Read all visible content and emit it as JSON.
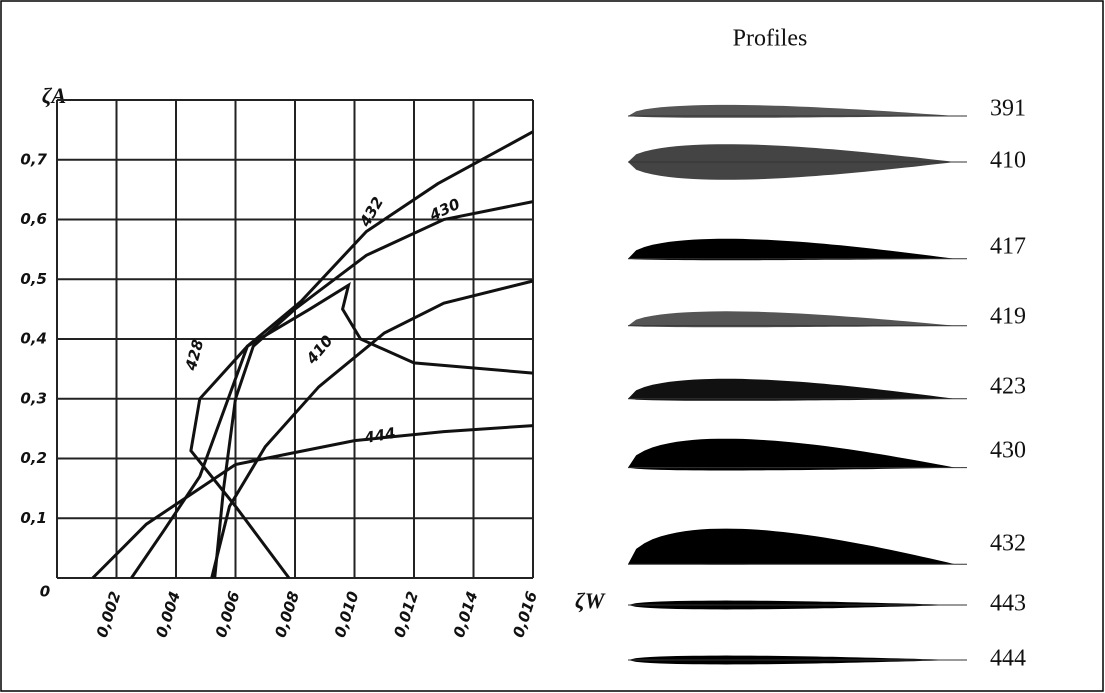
{
  "chart_data": {
    "type": "line",
    "y_label": "ζA",
    "x_label": "ζW",
    "xlim": [
      0,
      0.016
    ],
    "ylim": [
      0,
      0.8
    ],
    "xticks": [
      0,
      {
        "value": 0.002,
        "label": "0,002"
      },
      {
        "value": 0.004,
        "label": "0,004"
      },
      {
        "value": 0.006,
        "label": "0,006"
      },
      {
        "value": 0.008,
        "label": "0,008"
      },
      {
        "value": 0.01,
        "label": "0,010"
      },
      {
        "value": 0.012,
        "label": "0,012"
      },
      {
        "value": 0.014,
        "label": "0,014"
      },
      {
        "value": 0.016,
        "label": "0,016"
      }
    ],
    "yticks": [
      {
        "value": 0.1,
        "label": "0,1"
      },
      {
        "value": 0.2,
        "label": "0,2"
      },
      {
        "value": 0.3,
        "label": "0,3"
      },
      {
        "value": 0.4,
        "label": "0,4"
      },
      {
        "value": 0.5,
        "label": "0,5"
      },
      {
        "value": 0.6,
        "label": "0,6"
      },
      {
        "value": 0.7,
        "label": "0,7"
      }
    ],
    "grid": true,
    "series": [
      {
        "name": "432",
        "color": "#111111",
        "x": [
          0.0025,
          0.0036,
          0.0048,
          0.0064,
          0.0082,
          0.0104,
          0.0128,
          0.016
        ],
        "values": [
          0,
          0.08,
          0.17,
          0.388,
          0.463,
          0.58,
          0.66,
          0.747
        ]
      },
      {
        "name": "430",
        "color": "#111111",
        "x": [
          0.0053,
          0.0056,
          0.006,
          0.0066,
          0.008,
          0.0104,
          0.013,
          0.016
        ],
        "values": [
          0,
          0.15,
          0.3,
          0.388,
          0.45,
          0.54,
          0.6,
          0.63
        ]
      },
      {
        "name": "410",
        "color": "#111111",
        "x": [
          0.0052,
          0.0058,
          0.007,
          0.0088,
          0.011,
          0.013,
          0.016
        ],
        "values": [
          0,
          0.12,
          0.22,
          0.32,
          0.41,
          0.46,
          0.497
        ]
      },
      {
        "name": "428",
        "color": "#111111",
        "x": [
          0.0078,
          0.006,
          0.0045,
          0.0048,
          0.0064,
          0.0085,
          0.0098,
          0.0096,
          0.0102,
          0.012,
          0.016
        ],
        "values": [
          0,
          0.12,
          0.213,
          0.3,
          0.388,
          0.45,
          0.49,
          0.45,
          0.4,
          0.36,
          0.343
        ]
      },
      {
        "name": "444",
        "color": "#111111",
        "x": [
          0.0012,
          0.003,
          0.006,
          0.008,
          0.01,
          0.013,
          0.016
        ],
        "values": [
          0,
          0.09,
          0.19,
          0.21,
          0.23,
          0.245,
          0.255
        ]
      }
    ]
  },
  "profiles": {
    "title": "Profiles",
    "labels": [
      "391",
      "410",
      "417",
      "419",
      "423",
      "430",
      "432",
      "443",
      "444"
    ]
  }
}
